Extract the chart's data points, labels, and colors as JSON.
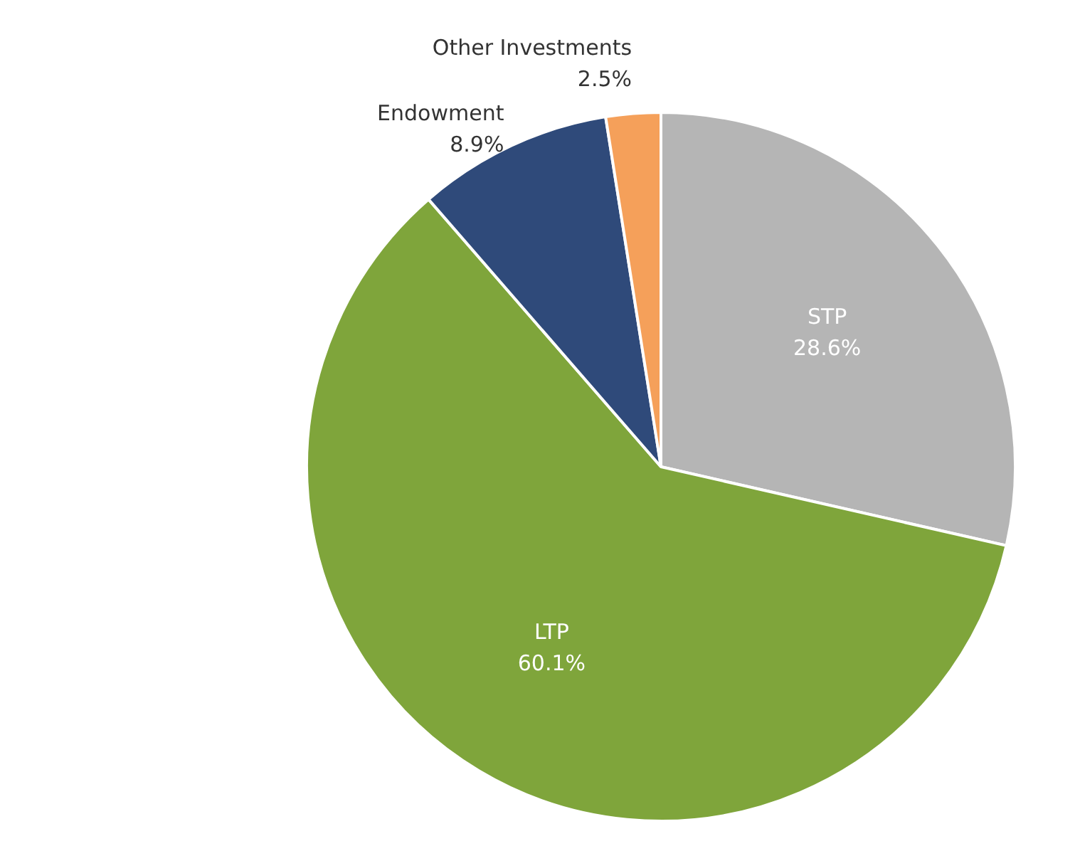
{
  "chart_data": {
    "type": "pie",
    "categories": [
      "STP",
      "LTP",
      "Endowment",
      "Other Investments"
    ],
    "values": [
      28.6,
      60.1,
      8.9,
      2.5
    ],
    "colors": [
      "#b5b5b5",
      "#7fa53b",
      "#2f4a7a",
      "#f5a05a"
    ],
    "value_labels": [
      "28.6%",
      "60.1%",
      "8.9%",
      "2.5%"
    ],
    "legend": false
  }
}
